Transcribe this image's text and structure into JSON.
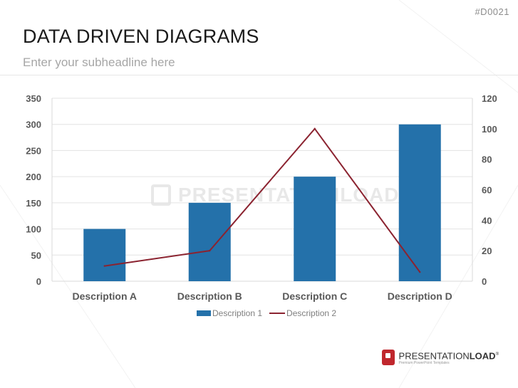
{
  "slide": {
    "code": "#D0021",
    "title": "DATA DRIVEN DIAGRAMS",
    "subtitle": "Enter your subheadline here"
  },
  "watermark": "PRESENTATIONLOAD",
  "brand": {
    "name_regular": "PRESENTATION",
    "name_bold": "LOAD",
    "tagline": "Premium PowerPoint Templates"
  },
  "colors": {
    "bar": "#2471aa",
    "line": "#8b2330",
    "grid": "#e3e3e3",
    "axis": "#d9d9d9",
    "text": "#595959"
  },
  "chart_data": {
    "type": "bar",
    "categories": [
      "Description A",
      "Description B",
      "Description C",
      "Description D"
    ],
    "series": [
      {
        "name": "Description 1",
        "type": "bar",
        "axis": "left",
        "values": [
          100,
          150,
          200,
          300
        ]
      },
      {
        "name": "Description 2",
        "type": "line",
        "axis": "right",
        "values": [
          10,
          20,
          100,
          6
        ]
      }
    ],
    "ylim_left": [
      0,
      350
    ],
    "yticks_left": [
      0,
      50,
      100,
      150,
      200,
      250,
      300,
      350
    ],
    "ylim_right": [
      0,
      120
    ],
    "yticks_right": [
      0,
      20,
      40,
      60,
      80,
      100,
      120
    ],
    "grid": true,
    "legend": "bottom"
  }
}
